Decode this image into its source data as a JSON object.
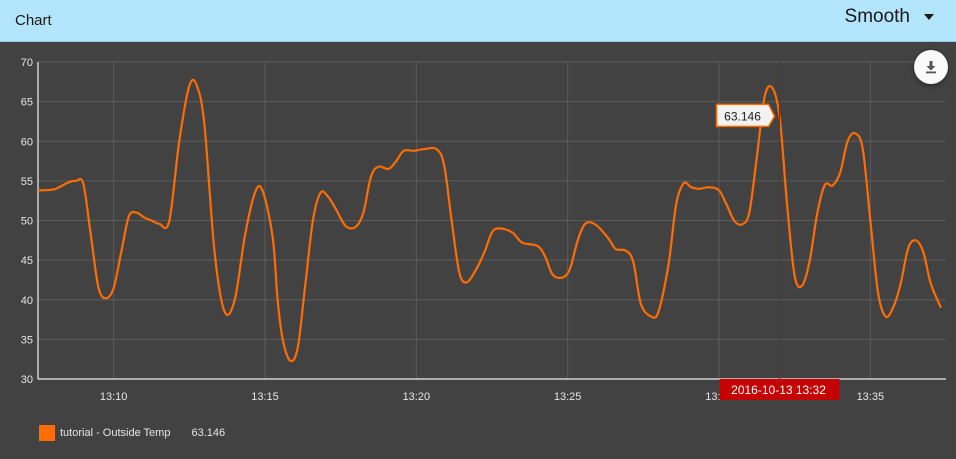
{
  "header": {
    "title": "Chart",
    "mode_label": "Smooth"
  },
  "icons": {
    "download": "download-icon",
    "dropdown": "chevron-down-icon"
  },
  "colors": {
    "header_bg": "#b3e5fc",
    "series": "#ff6d00",
    "cursor": "#d40000",
    "plot_bg": "#424242"
  },
  "chart_data": {
    "type": "line",
    "ylim": [
      30,
      70
    ],
    "y_ticks": [
      30,
      35,
      40,
      45,
      50,
      55,
      60,
      65,
      70
    ],
    "x_range": [
      "13:07:30",
      "13:37:30"
    ],
    "x_ticks": [
      "13:10",
      "13:15",
      "13:20",
      "13:25",
      "13:30",
      "13:35"
    ],
    "grid": true,
    "legend_position": "bottom-left",
    "series": [
      {
        "name": "tutorial - Outside Temp",
        "color": "#ff6d00",
        "last_value": "63.146",
        "points": [
          [
            "13:07:30",
            53.8
          ],
          [
            "13:08:00",
            53.9
          ],
          [
            "13:08:15",
            54.3
          ],
          [
            "13:08:30",
            54.8
          ],
          [
            "13:08:45",
            55.0
          ],
          [
            "13:09:00",
            54.6
          ],
          [
            "13:09:15",
            48
          ],
          [
            "13:09:30",
            41.5
          ],
          [
            "13:09:45",
            40.2
          ],
          [
            "13:10:00",
            41.5
          ],
          [
            "13:10:15",
            46
          ],
          [
            "13:10:30",
            50.5
          ],
          [
            "13:10:45",
            51
          ],
          [
            "13:11:00",
            50.4
          ],
          [
            "13:11:15",
            50
          ],
          [
            "13:11:30",
            49.6
          ],
          [
            "13:11:50",
            49.9
          ],
          [
            "13:12:10",
            60
          ],
          [
            "13:12:30",
            67
          ],
          [
            "13:12:45",
            67
          ],
          [
            "13:13:00",
            62
          ],
          [
            "13:13:20",
            46
          ],
          [
            "13:13:40",
            38.5
          ],
          [
            "13:14:00",
            40
          ],
          [
            "13:14:20",
            48
          ],
          [
            "13:14:40",
            53.5
          ],
          [
            "13:14:55",
            53.8
          ],
          [
            "13:15:15",
            48
          ],
          [
            "13:15:25",
            40
          ],
          [
            "13:15:35",
            35
          ],
          [
            "13:15:50",
            32.3
          ],
          [
            "13:16:05",
            34
          ],
          [
            "13:16:20",
            42
          ],
          [
            "13:16:35",
            50
          ],
          [
            "13:16:50",
            53.5
          ],
          [
            "13:17:05",
            53
          ],
          [
            "13:17:20",
            51.5
          ],
          [
            "13:17:40",
            49.3
          ],
          [
            "13:18:00",
            49.2
          ],
          [
            "13:18:15",
            51
          ],
          [
            "13:18:30",
            55.5
          ],
          [
            "13:18:45",
            56.8
          ],
          [
            "13:19:05",
            56.5
          ],
          [
            "13:19:20",
            57.5
          ],
          [
            "13:19:35",
            58.8
          ],
          [
            "13:19:55",
            58.8
          ],
          [
            "13:20:15",
            59
          ],
          [
            "13:20:40",
            59
          ],
          [
            "13:20:55",
            57
          ],
          [
            "13:21:10",
            50
          ],
          [
            "13:21:25",
            43.5
          ],
          [
            "13:21:40",
            42.2
          ],
          [
            "13:22:00",
            44
          ],
          [
            "13:22:15",
            46
          ],
          [
            "13:22:30",
            48.5
          ],
          [
            "13:22:45",
            49
          ],
          [
            "13:23:10",
            48.5
          ],
          [
            "13:23:30",
            47.2
          ],
          [
            "13:24:00",
            46.8
          ],
          [
            "13:24:15",
            45.5
          ],
          [
            "13:24:30",
            43.2
          ],
          [
            "13:24:50",
            42.8
          ],
          [
            "13:25:05",
            44
          ],
          [
            "13:25:20",
            47.5
          ],
          [
            "13:25:35",
            49.6
          ],
          [
            "13:25:55",
            49.5
          ],
          [
            "13:26:20",
            47.8
          ],
          [
            "13:26:35",
            46.4
          ],
          [
            "13:26:55",
            46.2
          ],
          [
            "13:27:10",
            44.8
          ],
          [
            "13:27:25",
            39.5
          ],
          [
            "13:27:45",
            37.9
          ],
          [
            "13:28:00",
            38.5
          ],
          [
            "13:28:20",
            44.5
          ],
          [
            "13:28:35",
            52
          ],
          [
            "13:28:50",
            54.7
          ],
          [
            "13:29:05",
            54.2
          ],
          [
            "13:29:20",
            54
          ],
          [
            "13:29:40",
            54.2
          ],
          [
            "13:30:00",
            53.8
          ],
          [
            "13:30:15",
            52
          ],
          [
            "13:30:30",
            50
          ],
          [
            "13:30:45",
            49.5
          ],
          [
            "13:31:00",
            51
          ],
          [
            "13:31:15",
            58
          ],
          [
            "13:31:30",
            65.5
          ],
          [
            "13:31:45",
            66.8
          ],
          [
            "13:32:00",
            63.146
          ],
          [
            "13:32:15",
            52
          ],
          [
            "13:32:30",
            43
          ],
          [
            "13:32:45",
            41.8
          ],
          [
            "13:33:00",
            45
          ],
          [
            "13:33:15",
            51
          ],
          [
            "13:33:30",
            54.5
          ],
          [
            "13:33:45",
            54.4
          ],
          [
            "13:34:00",
            56
          ],
          [
            "13:34:15",
            60
          ],
          [
            "13:34:30",
            61
          ],
          [
            "13:34:45",
            59
          ],
          [
            "13:35:00",
            50
          ],
          [
            "13:35:15",
            41
          ],
          [
            "13:35:30",
            37.9
          ],
          [
            "13:35:45",
            39
          ],
          [
            "13:36:00",
            42
          ],
          [
            "13:36:15",
            46.5
          ],
          [
            "13:36:30",
            47.5
          ],
          [
            "13:36:45",
            46
          ],
          [
            "13:37:00",
            42
          ],
          [
            "13:37:20",
            39
          ]
        ]
      }
    ],
    "cursor": {
      "time": "13:32:00",
      "time_label": "2016-10-13 13:32",
      "value_label": "63.146"
    }
  }
}
